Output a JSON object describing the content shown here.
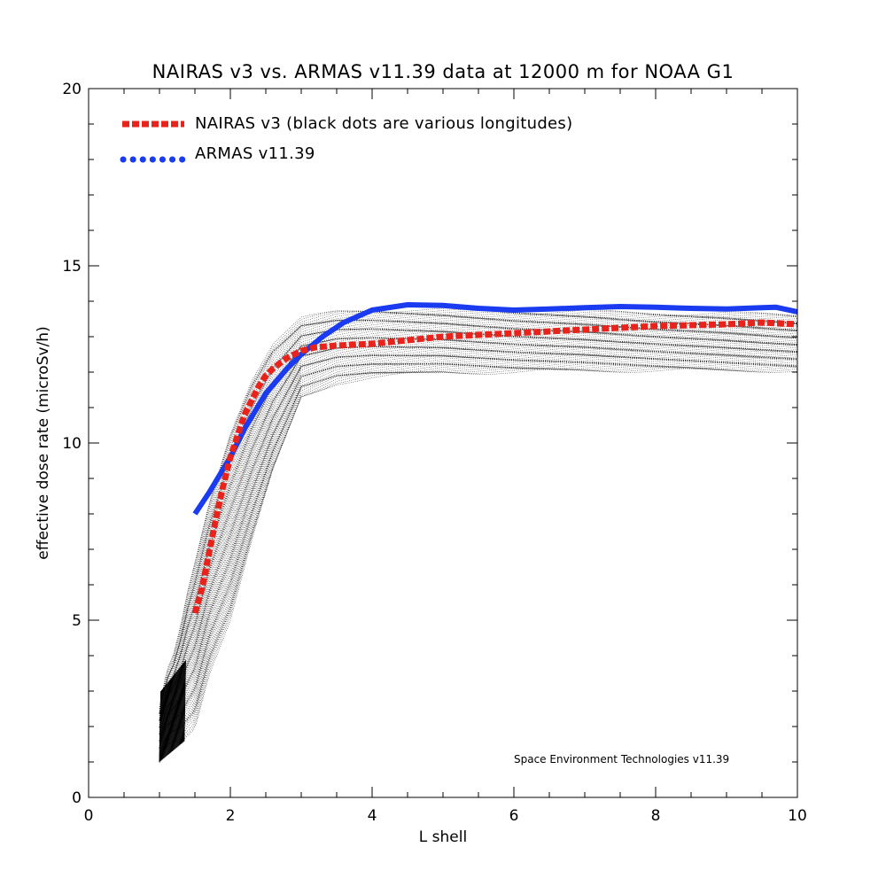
{
  "chart_data": {
    "type": "line",
    "title": "NAIRAS  v3 vs. ARMAS v11.39 data at 12000 m for NOAA G1",
    "xlabel": "L shell",
    "ylabel": "effective dose rate (microSv/h)",
    "xlim": [
      0,
      10
    ],
    "ylim": [
      0,
      20
    ],
    "xticks": [
      0,
      2,
      4,
      6,
      8,
      10
    ],
    "xticklabels": [
      "0",
      "2",
      "4",
      "6",
      "8",
      "10"
    ],
    "yticks": [
      0,
      5,
      10,
      15,
      20
    ],
    "yticklabels": [
      "0",
      "5",
      "10",
      "15",
      "20"
    ],
    "grid": false,
    "legend_position": "top-left",
    "credit": "Space Environment Technologies v11.39",
    "colors": {
      "nairas": "#e8231c",
      "armas": "#1a3bf0",
      "scatter": "#000000"
    },
    "series": [
      {
        "name": "NAIRAS v3 (black dots are various longitudes)",
        "style": "dashed",
        "x": [
          1.5,
          1.6,
          1.7,
          1.8,
          1.9,
          2.0,
          2.1,
          2.2,
          2.3,
          2.4,
          2.5,
          2.6,
          2.8,
          3.0,
          3.2,
          3.5,
          4.0,
          5.0,
          6.0,
          7.0,
          8.0,
          9.0,
          9.5,
          10.0
        ],
        "y": [
          5.2,
          5.9,
          6.9,
          7.9,
          8.8,
          9.6,
          10.2,
          10.8,
          11.2,
          11.6,
          11.9,
          12.1,
          12.4,
          12.6,
          12.7,
          12.75,
          12.8,
          13.0,
          13.1,
          13.2,
          13.3,
          13.35,
          13.4,
          13.35
        ]
      },
      {
        "name": "ARMAS v11.39",
        "style": "solid",
        "x": [
          1.5,
          1.7,
          2.0,
          2.2,
          2.5,
          2.8,
          3.0,
          3.3,
          3.6,
          4.0,
          4.5,
          5.0,
          5.5,
          6.0,
          6.5,
          7.0,
          7.5,
          8.0,
          8.5,
          9.0,
          9.5,
          9.7,
          10.0
        ],
        "y": [
          8.0,
          8.6,
          9.6,
          10.4,
          11.4,
          12.1,
          12.5,
          13.0,
          13.4,
          13.75,
          13.9,
          13.88,
          13.8,
          13.75,
          13.78,
          13.82,
          13.85,
          13.83,
          13.8,
          13.78,
          13.82,
          13.83,
          13.7
        ]
      }
    ],
    "scatter_envelope": {
      "description_source": "black dots",
      "upper": {
        "x": [
          1.0,
          1.1,
          1.2,
          1.3,
          1.4,
          1.5,
          1.7,
          2.0,
          2.3,
          2.6,
          3.0,
          3.5,
          4.0,
          5.0,
          6.0,
          7.0,
          8.0,
          9.0,
          10.0
        ],
        "y": [
          2.5,
          3.5,
          4.0,
          4.8,
          5.8,
          6.6,
          8.3,
          10.3,
          11.8,
          12.8,
          13.5,
          13.7,
          13.75,
          13.75,
          13.7,
          13.7,
          13.65,
          13.65,
          13.6
        ]
      },
      "lower": {
        "x": [
          1.0,
          1.1,
          1.2,
          1.3,
          1.5,
          1.7,
          2.0,
          2.3,
          2.6,
          3.0,
          3.5,
          4.0,
          5.0,
          6.0,
          7.0,
          8.0,
          9.0,
          10.0
        ],
        "y": [
          1.0,
          1.5,
          1.6,
          1.6,
          2.0,
          3.5,
          5.0,
          7.2,
          9.2,
          11.3,
          11.7,
          11.85,
          12.0,
          12.0,
          12.05,
          12.05,
          12.05,
          12.05
        ]
      }
    }
  }
}
